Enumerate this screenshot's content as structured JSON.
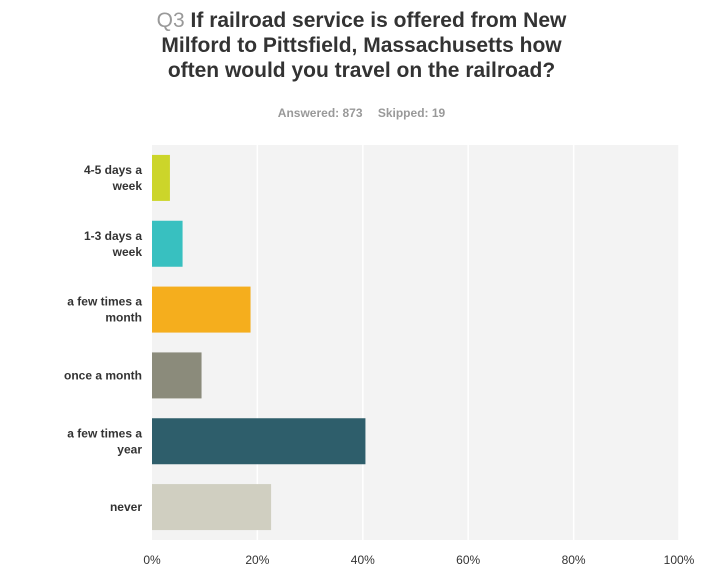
{
  "header": {
    "question_number": "Q3",
    "question_text": "If railroad service is offered from New Milford to Pittsfield, Massachusetts how often would you travel on the railroad?",
    "answered": "Answered: 873",
    "skipped": "Skipped: 19"
  },
  "chart_data": {
    "type": "bar",
    "orientation": "horizontal",
    "categories": [
      "4-5 days a week",
      "1-3 days a week",
      "a few times a month",
      "once a month",
      "a few times a year",
      "never"
    ],
    "values": [
      3.4,
      5.8,
      18.7,
      9.4,
      40.5,
      22.6
    ],
    "colors": [
      "#ccd52a",
      "#38c0c0",
      "#f5ae1d",
      "#8b8b7b",
      "#2e5e6b",
      "#d0cfc1"
    ],
    "xlim": [
      0,
      100
    ],
    "xticks": [
      "0%",
      "20%",
      "40%",
      "60%",
      "80%",
      "100%"
    ],
    "xtick_values": [
      0,
      20,
      40,
      60,
      80,
      100
    ],
    "grid": true,
    "plot_background": "#f3f3f3"
  }
}
